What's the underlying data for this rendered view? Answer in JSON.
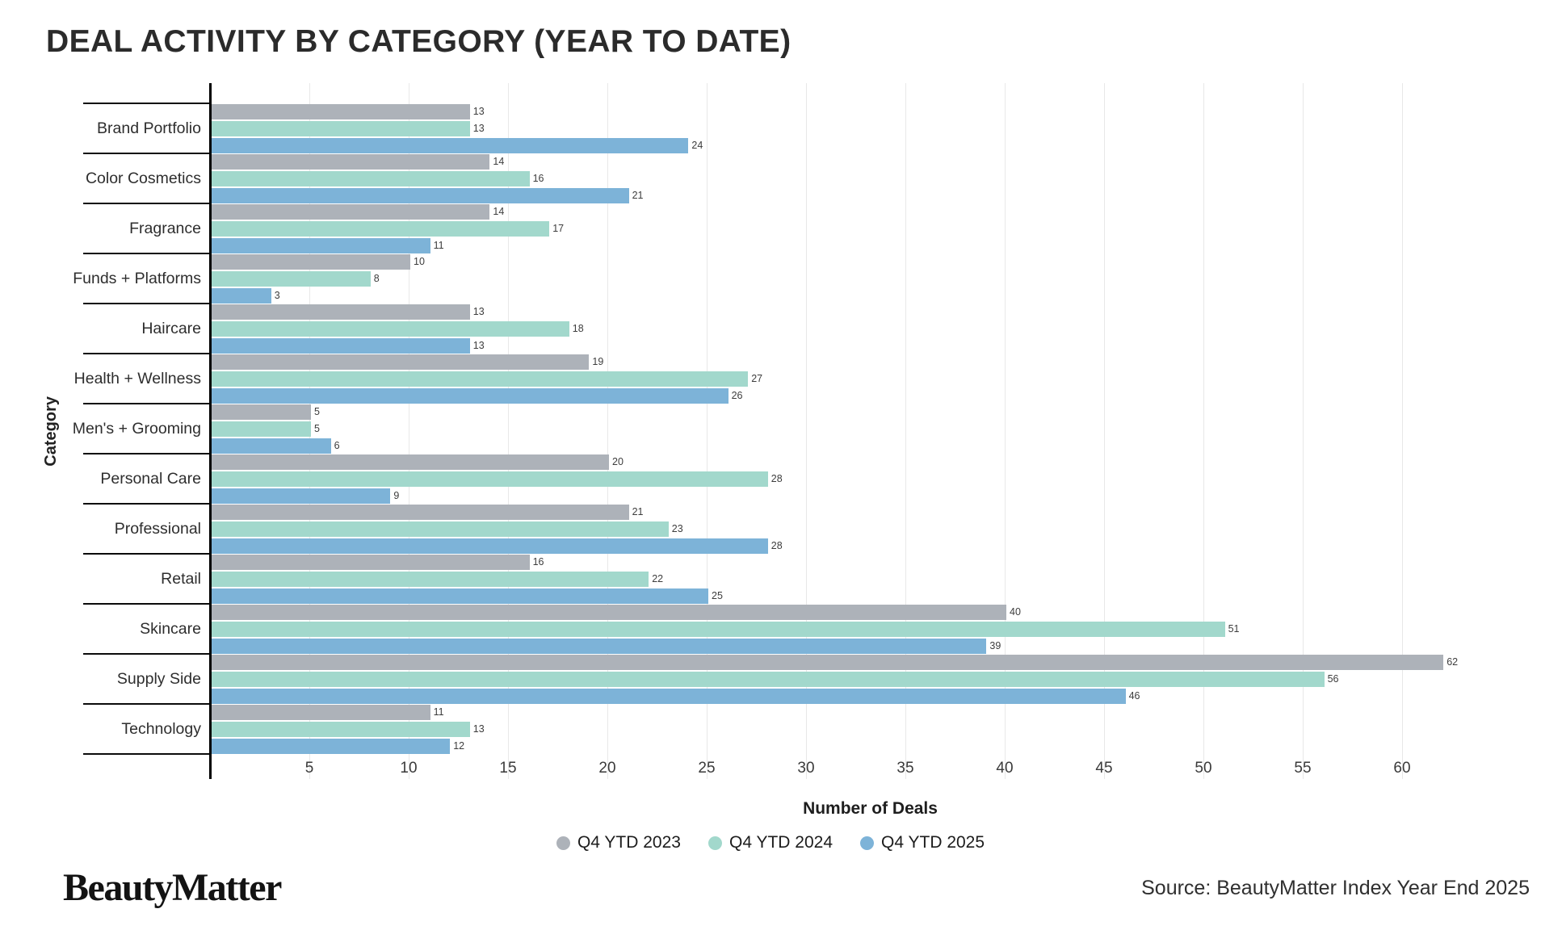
{
  "title": "DEAL ACTIVITY BY CATEGORY (YEAR TO DATE)",
  "chart_data": {
    "type": "bar",
    "orientation": "horizontal",
    "title": "DEAL ACTIVITY BY CATEGORY (YEAR TO DATE)",
    "xlabel": "Number of Deals",
    "ylabel": "Category",
    "xlim": [
      0,
      66
    ],
    "xticks": [
      5,
      10,
      15,
      20,
      25,
      30,
      35,
      40,
      45,
      50,
      55,
      60
    ],
    "grid": true,
    "bar_value_labels_shown": true,
    "legend_position": "bottom",
    "categories": [
      "Brand Portfolio",
      "Color Cosmetics",
      "Fragrance",
      "Funds + Platforms",
      "Haircare",
      "Health + Wellness",
      "Men's + Grooming",
      "Personal Care",
      "Professional",
      "Retail",
      "Skincare",
      "Supply Side",
      "Technology"
    ],
    "series": [
      {
        "name": "Q4 YTD 2023",
        "color": "#adb2b9",
        "values": [
          13,
          14,
          14,
          10,
          13,
          19,
          5,
          20,
          21,
          16,
          40,
          62,
          11
        ]
      },
      {
        "name": "Q4 YTD 2024",
        "color": "#a2d8cc",
        "values": [
          13,
          16,
          17,
          8,
          18,
          27,
          5,
          28,
          23,
          22,
          51,
          56,
          13
        ]
      },
      {
        "name": "Q4 YTD 2025",
        "color": "#7db3d8",
        "values": [
          24,
          21,
          11,
          3,
          13,
          26,
          6,
          9,
          28,
          25,
          39,
          46,
          12
        ]
      }
    ]
  },
  "colors": {
    "axis_line": "#000000",
    "gridline": "#e8e8e8",
    "title_text": "#2b2b2b"
  },
  "footer": {
    "logo_text": "BeautyMatter",
    "source": "Source: BeautyMatter Index Year End 2025"
  }
}
